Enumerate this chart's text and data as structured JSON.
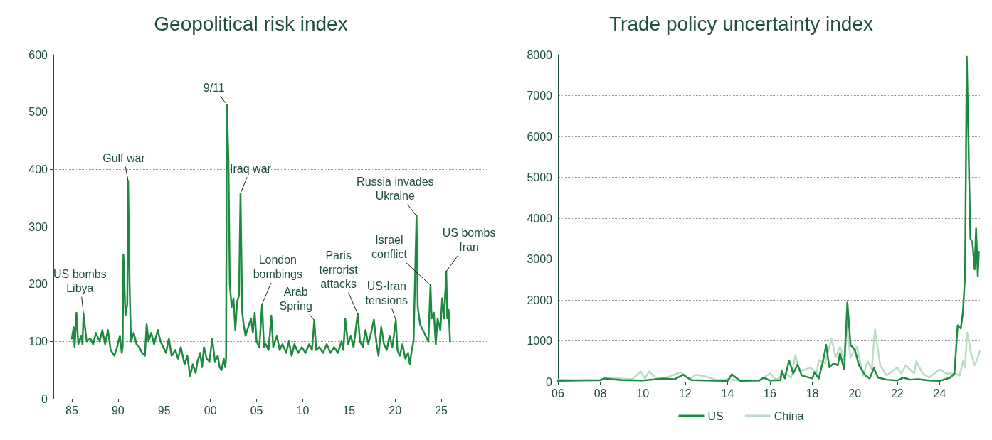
{
  "chart_data": [
    {
      "type": "line",
      "title": "Geopolitical risk index",
      "x": [
        1985.0,
        1985.2,
        1985.3,
        1985.5,
        1985.7,
        1986.0,
        1986.15,
        1986.26,
        1986.6,
        1987.0,
        1987.3,
        1987.6,
        1988.0,
        1988.3,
        1988.6,
        1988.9,
        1989.2,
        1989.6,
        1989.9,
        1990.2,
        1990.4,
        1990.5,
        1990.58,
        1990.8,
        1991.0,
        1991.09,
        1991.25,
        1991.4,
        1991.7,
        1992.0,
        1992.3,
        1992.6,
        1992.9,
        1993.1,
        1993.3,
        1993.6,
        1993.9,
        1994.3,
        1994.6,
        1994.9,
        1995.2,
        1995.5,
        1995.8,
        1996.2,
        1996.5,
        1996.8,
        1997.2,
        1997.5,
        1997.8,
        1998.1,
        1998.4,
        1998.6,
        1998.9,
        1999.1,
        1999.3,
        1999.6,
        1999.9,
        2000.2,
        2000.5,
        2000.8,
        2001.0,
        2001.2,
        2001.45,
        2001.6,
        2001.7,
        2001.78,
        2001.95,
        2002.1,
        2002.3,
        2002.5,
        2002.7,
        2002.9,
        2003.1,
        2003.26,
        2003.45,
        2003.6,
        2003.8,
        2004.1,
        2004.4,
        2004.6,
        2004.8,
        2005.0,
        2005.3,
        2005.6,
        2005.8,
        2006.0,
        2006.3,
        2006.6,
        2006.8,
        2007.2,
        2007.5,
        2007.8,
        2008.2,
        2008.5,
        2008.8,
        2009.1,
        2009.5,
        2009.9,
        2010.3,
        2010.7,
        2011.0,
        2011.25,
        2011.45,
        2011.8,
        2012.2,
        2012.6,
        2013.0,
        2013.4,
        2013.8,
        2014.2,
        2014.4,
        2014.6,
        2014.9,
        2015.2,
        2015.5,
        2015.95,
        2016.2,
        2016.5,
        2016.8,
        2017.1,
        2017.4,
        2017.7,
        2018.0,
        2018.2,
        2018.5,
        2018.8,
        2019.1,
        2019.4,
        2019.7,
        2020.08,
        2020.25,
        2020.5,
        2020.8,
        2021.1,
        2021.4,
        2021.6,
        2021.8,
        2022.0,
        2022.32,
        2022.45,
        2022.7,
        2023.0,
        2023.3,
        2023.6,
        2023.83,
        2023.95,
        2024.2,
        2024.4,
        2024.6,
        2024.9,
        2025.1,
        2025.3,
        2025.54,
        2025.65,
        2025.8,
        2025.95
      ],
      "series": [
        {
          "color": "#1e8a40",
          "values": [
            105,
            125,
            90,
            150,
            95,
            110,
            95,
            148,
            100,
            105,
            95,
            115,
            100,
            120,
            95,
            120,
            85,
            75,
            90,
            110,
            80,
            90,
            251,
            145,
            165,
            380,
            200,
            100,
            115,
            95,
            90,
            80,
            75,
            130,
            100,
            115,
            95,
            120,
            100,
            90,
            80,
            105,
            75,
            85,
            70,
            90,
            60,
            75,
            40,
            60,
            45,
            65,
            80,
            55,
            90,
            70,
            65,
            105,
            65,
            75,
            55,
            50,
            70,
            55,
            70,
            513,
            420,
            200,
            160,
            175,
            120,
            170,
            180,
            358,
            150,
            130,
            110,
            125,
            140,
            115,
            150,
            100,
            90,
            165,
            90,
            95,
            85,
            145,
            90,
            110,
            85,
            95,
            80,
            100,
            75,
            95,
            80,
            90,
            80,
            95,
            85,
            137,
            85,
            90,
            80,
            95,
            80,
            90,
            80,
            100,
            85,
            140,
            95,
            110,
            90,
            148,
            100,
            90,
            120,
            95,
            115,
            138,
            95,
            75,
            125,
            95,
            85,
            110,
            90,
            137,
            85,
            75,
            95,
            70,
            80,
            60,
            85,
            100,
            319,
            160,
            130,
            120,
            110,
            100,
            198,
            140,
            150,
            95,
            140,
            120,
            175,
            140,
            222,
            140,
            155,
            100
          ]
        }
      ],
      "xlim": [
        1983,
        2030
      ],
      "xticks": [
        {
          "value": 1985,
          "label": "85"
        },
        {
          "value": 1990,
          "label": "90"
        },
        {
          "value": 1995,
          "label": "95"
        },
        {
          "value": 2000,
          "label": "00"
        },
        {
          "value": 2005,
          "label": "05"
        },
        {
          "value": 2010,
          "label": "10"
        },
        {
          "value": 2015,
          "label": "15"
        },
        {
          "value": 2020,
          "label": "20"
        },
        {
          "value": 2025,
          "label": "25"
        }
      ],
      "ylim": [
        0,
        600
      ],
      "yticks": [
        0,
        100,
        200,
        300,
        400,
        500,
        600
      ],
      "grid": "y",
      "legend": false,
      "annotations": [
        {
          "text": "US bombs\nLibya",
          "x": 1986.26,
          "y": 148
        },
        {
          "text": "Gulf war",
          "x": 1991.09,
          "y": 380
        },
        {
          "text": "9/11",
          "x": 2001.78,
          "y": 513
        },
        {
          "text": "Iraq war",
          "x": 2003.26,
          "y": 358
        },
        {
          "text": "London\nbombings",
          "x": 2005.6,
          "y": 165
        },
        {
          "text": "Arab\nSpring",
          "x": 2011.25,
          "y": 137
        },
        {
          "text": "Paris\nterrorist\nattacks",
          "x": 2015.95,
          "y": 148
        },
        {
          "text": "US-Iran\ntensions",
          "x": 2020.08,
          "y": 137
        },
        {
          "text": "Russia invades\nUkraine",
          "x": 2022.32,
          "y": 319
        },
        {
          "text": "Israel\nconflict",
          "x": 2023.83,
          "y": 198
        },
        {
          "text": "US bombs\nIran",
          "x": 2025.54,
          "y": 222
        }
      ]
    },
    {
      "type": "line",
      "title": "Trade policy uncertainty index",
      "series": [
        {
          "name": "US",
          "color": "#1e8a40",
          "x": [
            2006,
            2007,
            2008,
            2008.2,
            2009,
            2010,
            2011,
            2011.5,
            2011.9,
            2012.3,
            2013,
            2014,
            2014.2,
            2014.4,
            2014.6,
            2015.5,
            2015.7,
            2016,
            2016.5,
            2016.55,
            2016.7,
            2016.9,
            2017.1,
            2017.3,
            2017.5,
            2018,
            2018.1,
            2018.3,
            2018.5,
            2018.65,
            2018.8,
            2019,
            2019.2,
            2019.3,
            2019.5,
            2019.65,
            2019.8,
            2020.0,
            2020.2,
            2020.5,
            2020.7,
            2020.9,
            2021.1,
            2021.5,
            2022,
            2022.3,
            2022.6,
            2023,
            2023.5,
            2024,
            2024.5,
            2024.7,
            2024.85,
            2025.0,
            2025.1,
            2025.2,
            2025.28,
            2025.45,
            2025.55,
            2025.65,
            2025.72,
            2025.8,
            2025.85
          ],
          "values": [
            20,
            30,
            40,
            80,
            40,
            30,
            80,
            60,
            170,
            40,
            30,
            20,
            180,
            100,
            20,
            30,
            100,
            30,
            40,
            270,
            80,
            520,
            200,
            420,
            150,
            80,
            230,
            80,
            500,
            900,
            350,
            450,
            400,
            700,
            300,
            1940,
            900,
            780,
            400,
            150,
            80,
            330,
            100,
            50,
            30,
            100,
            50,
            60,
            30,
            20,
            100,
            200,
            1380,
            1300,
            1700,
            2600,
            7950,
            3500,
            3400,
            2750,
            3750,
            2580,
            3180
          ]
        },
        {
          "name": "China",
          "color": "#b8dcc4",
          "x": [
            2006,
            2007,
            2008,
            2008.3,
            2009,
            2009.5,
            2009.9,
            2010.1,
            2010.3,
            2010.6,
            2011,
            2011.8,
            2012.2,
            2012.5,
            2013,
            2013.5,
            2014,
            2014.5,
            2015,
            2015.5,
            2016,
            2016.3,
            2016.7,
            2017,
            2017.2,
            2017.4,
            2017.7,
            2017.9,
            2018.2,
            2018.3,
            2018.6,
            2018.9,
            2019.1,
            2019.3,
            2019.5,
            2019.6,
            2019.8,
            2020.1,
            2020.4,
            2020.6,
            2020.8,
            2020.95,
            2021.2,
            2021.5,
            2022,
            2022.2,
            2022.4,
            2022.8,
            2022.9,
            2023.2,
            2023.5,
            2024,
            2024.3,
            2024.7,
            2024.95,
            2025.1,
            2025.2,
            2025.3,
            2025.5,
            2025.65,
            2025.75,
            2025.9
          ],
          "values": [
            50,
            40,
            30,
            100,
            80,
            60,
            250,
            80,
            250,
            100,
            80,
            230,
            60,
            170,
            120,
            40,
            60,
            30,
            40,
            30,
            200,
            50,
            200,
            100,
            650,
            250,
            300,
            350,
            200,
            530,
            450,
            1060,
            600,
            850,
            550,
            1420,
            600,
            850,
            150,
            500,
            300,
            1280,
            400,
            150,
            350,
            200,
            400,
            200,
            500,
            200,
            100,
            300,
            200,
            200,
            150,
            500,
            350,
            1200,
            650,
            400,
            520,
            760
          ]
        }
      ],
      "xlim": [
        2006,
        2026
      ],
      "xticks": [
        {
          "value": 2006,
          "label": "06"
        },
        {
          "value": 2008,
          "label": "08"
        },
        {
          "value": 2010,
          "label": "10"
        },
        {
          "value": 2012,
          "label": "12"
        },
        {
          "value": 2014,
          "label": "14"
        },
        {
          "value": 2016,
          "label": "16"
        },
        {
          "value": 2018,
          "label": "18"
        },
        {
          "value": 2020,
          "label": "20"
        },
        {
          "value": 2022,
          "label": "22"
        },
        {
          "value": 2024,
          "label": "24"
        }
      ],
      "ylim": [
        0,
        8000
      ],
      "yticks": [
        0,
        1000,
        2000,
        3000,
        4000,
        5000,
        6000,
        7000,
        8000
      ],
      "grid": "y",
      "legend": "bottom"
    }
  ]
}
